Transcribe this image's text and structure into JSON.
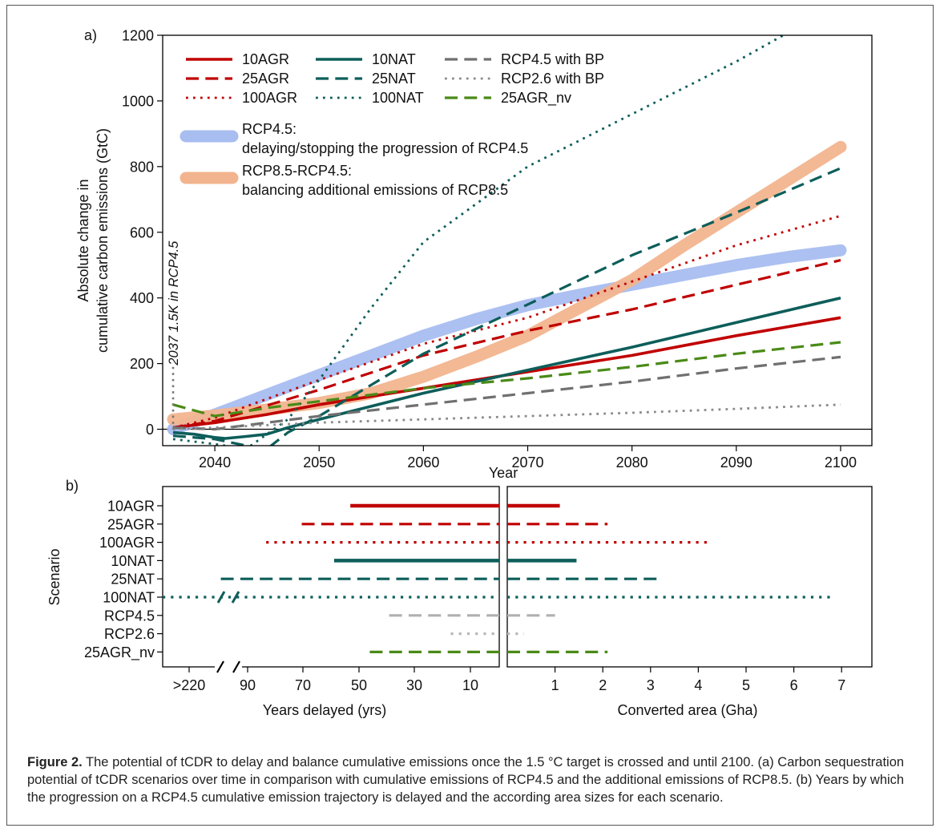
{
  "panel_a_label": "a)",
  "panel_b_label": "b)",
  "caption": {
    "label": "Figure 2.",
    "text": " The potential of tCDR to delay and balance cumulative emissions once the 1.5 °C target is crossed and until 2100. (a) Carbon sequestration potential of tCDR scenarios over time in comparison with cumulative emissions of RCP4.5 and the additional emissions of RCP8.5. (b) Years by which the progression on a RCP4.5 cumulative emission trajectory is delayed and the according area sizes for each scenario."
  },
  "colors": {
    "agr": "#c00000",
    "nat": "#0d5e5a",
    "bp45": "#707070",
    "bp26": "#8a8a8a",
    "nv": "#4a8a17",
    "rcp45_band": "#a8bdf0",
    "rcp85_band": "#f2b48e",
    "rcp45_bar": "#b0b0b0",
    "rcp26_bar": "#b8b8b8"
  },
  "chart_data": [
    {
      "type": "line",
      "xlabel": "Year",
      "ylabel": "Absolute change in cumulative carbon emissions (GtC)",
      "xlim": [
        2035,
        2103
      ],
      "ylim": [
        -50,
        1200
      ],
      "xticks": [
        2040,
        2050,
        2060,
        2070,
        2080,
        2090,
        2100
      ],
      "yticks": [
        0,
        200,
        400,
        600,
        800,
        1000,
        1200
      ],
      "annotation": "2037 1.5K in RCP4.5",
      "annotation_x": 2036,
      "legend_position": "top-left",
      "series": [
        {
          "name": "RCP4.5:",
          "desc": "delaying/stopping the progression of RCP4.5",
          "key": "rcp45_band",
          "style": "band",
          "x": [
            2036,
            2040,
            2045,
            2050,
            2055,
            2060,
            2065,
            2070,
            2075,
            2080,
            2085,
            2090,
            2095,
            2100
          ],
          "y": [
            0,
            45,
            105,
            165,
            225,
            285,
            335,
            378,
            410,
            440,
            470,
            500,
            525,
            545
          ]
        },
        {
          "name": "RCP8.5-RCP4.5:",
          "desc": "balancing additional emissions of RCP8.5",
          "key": "rcp85_band",
          "style": "band",
          "x": [
            2036,
            2040,
            2045,
            2050,
            2055,
            2060,
            2065,
            2070,
            2075,
            2080,
            2085,
            2090,
            2095,
            2100
          ],
          "y": [
            30,
            42,
            60,
            80,
            110,
            160,
            220,
            285,
            370,
            455,
            560,
            660,
            760,
            860
          ]
        },
        {
          "name": "10AGR",
          "key": "agr",
          "style": "solid",
          "x": [
            2036,
            2040,
            2045,
            2050,
            2060,
            2070,
            2080,
            2090,
            2100
          ],
          "y": [
            5,
            20,
            45,
            75,
            125,
            175,
            225,
            285,
            340
          ]
        },
        {
          "name": "25AGR",
          "key": "agr",
          "style": "dashed",
          "x": [
            2036,
            2040,
            2050,
            2060,
            2070,
            2080,
            2090,
            2100
          ],
          "y": [
            5,
            25,
            120,
            225,
            300,
            365,
            440,
            515
          ]
        },
        {
          "name": "100AGR",
          "key": "agr",
          "style": "dotted",
          "x": [
            2036,
            2040,
            2050,
            2060,
            2070,
            2080,
            2090,
            2100
          ],
          "y": [
            5,
            35,
            150,
            260,
            340,
            450,
            560,
            650
          ]
        },
        {
          "name": "10NAT",
          "key": "nat",
          "style": "solid",
          "x": [
            2036,
            2038,
            2040,
            2041,
            2043,
            2045,
            2047,
            2050,
            2060,
            2070,
            2080,
            2090,
            2100
          ],
          "y": [
            -10,
            -15,
            -25,
            -28,
            -22,
            -15,
            5,
            30,
            110,
            180,
            250,
            325,
            400
          ]
        },
        {
          "name": "25NAT",
          "key": "nat",
          "style": "dashed",
          "x": [
            2036,
            2040,
            2043,
            2045,
            2047,
            2050,
            2060,
            2070,
            2080,
            2090,
            2100
          ],
          "y": [
            -20,
            -30,
            -50,
            -60,
            -10,
            40,
            230,
            380,
            530,
            660,
            795
          ]
        },
        {
          "name": "100NAT",
          "key": "nat",
          "style": "dotted",
          "x": [
            2036,
            2040,
            2043,
            2047,
            2050,
            2055,
            2060,
            2070,
            2080,
            2090,
            2094.5
          ],
          "y": [
            -30,
            -45,
            -60,
            30,
            150,
            370,
            570,
            800,
            960,
            1120,
            1200
          ]
        },
        {
          "name": "RCP4.5 with BP",
          "key": "bp45",
          "style": "dashed",
          "x": [
            2036,
            2040,
            2050,
            2060,
            2070,
            2080,
            2090,
            2100
          ],
          "y": [
            5,
            0,
            40,
            75,
            110,
            145,
            185,
            220
          ]
        },
        {
          "name": "RCP2.6 with BP",
          "key": "bp26",
          "style": "dotted",
          "x": [
            2036,
            2040,
            2050,
            2060,
            2070,
            2080,
            2090,
            2100
          ],
          "y": [
            0,
            5,
            20,
            30,
            40,
            50,
            62,
            75
          ]
        },
        {
          "name": "25AGR_nv",
          "key": "nv",
          "style": "dashed",
          "x": [
            2036,
            2040,
            2045,
            2050,
            2060,
            2070,
            2080,
            2090,
            2100
          ],
          "y": [
            75,
            40,
            65,
            85,
            125,
            155,
            190,
            230,
            265
          ]
        }
      ]
    },
    {
      "type": "bar",
      "ylabel": "Scenario",
      "left_xlabel": "Years delayed (yrs)",
      "right_xlabel": "Converted area (Gha)",
      "left_ticks": [
        ">220",
        "90",
        "70",
        "50",
        "30",
        "10"
      ],
      "right_ticks": [
        "1",
        "2",
        "3",
        "4",
        "5",
        "6",
        "7"
      ],
      "left_xlim": [
        0,
        100
      ],
      "right_xlim": [
        0,
        7.6
      ],
      "categories": [
        "10AGR",
        "25AGR",
        "100AGR",
        "10NAT",
        "25NAT",
        "100NAT",
        "RCP4.5",
        "RCP2.6",
        "25AGR_nv"
      ],
      "keys": [
        "agr",
        "agr",
        "agr",
        "nat",
        "nat",
        "nat",
        "rcp45_bar",
        "rcp26_bar",
        "nv"
      ],
      "styles": [
        "solid",
        "dashed",
        "dotted",
        "solid",
        "dashed",
        "dotted",
        "dashed",
        "dotted",
        "dashed"
      ],
      "years_delayed": [
        46,
        61,
        72,
        51,
        86,
        220,
        34,
        15,
        40
      ],
      "area_gha": [
        1.1,
        2.1,
        4.25,
        1.45,
        3.25,
        6.8,
        1.0,
        0.35,
        2.1
      ]
    }
  ]
}
